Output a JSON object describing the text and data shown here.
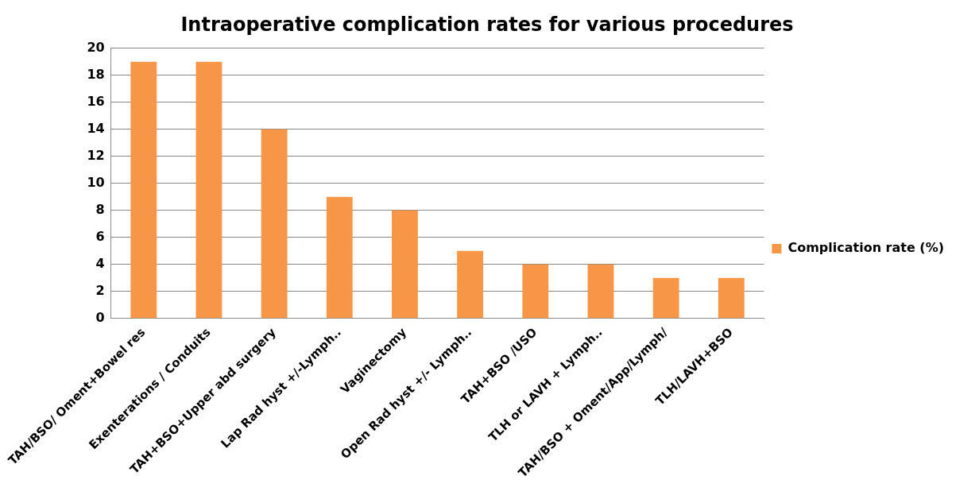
{
  "chart_data": {
    "type": "bar",
    "title": "Intraoperative complication rates for various procedures",
    "categories": [
      "TAH/BSO/ Oment+Bowel res",
      "Exenterations / Conduits",
      "TAH+BSO+Upper abd surgery",
      "Lap Rad hyst +/-Lymph..",
      "Vaginectomy",
      "Open Rad hyst +/- Lymph..",
      "TAH+BSO /USO",
      "TLH or LAVH + Lymph..",
      "TAH/BSO + Oment/App/Lymph/",
      "TLH/LAVH+BSO"
    ],
    "series": [
      {
        "name": "Complication rate (%)",
        "color": "#f79646",
        "values": [
          19,
          19,
          14,
          9,
          8,
          5,
          4,
          4,
          3,
          3
        ]
      }
    ],
    "ylim": [
      0,
      20
    ],
    "yticks": [
      0,
      2,
      4,
      6,
      8,
      10,
      12,
      14,
      16,
      18,
      20
    ],
    "grid": "y",
    "legend": "right"
  }
}
